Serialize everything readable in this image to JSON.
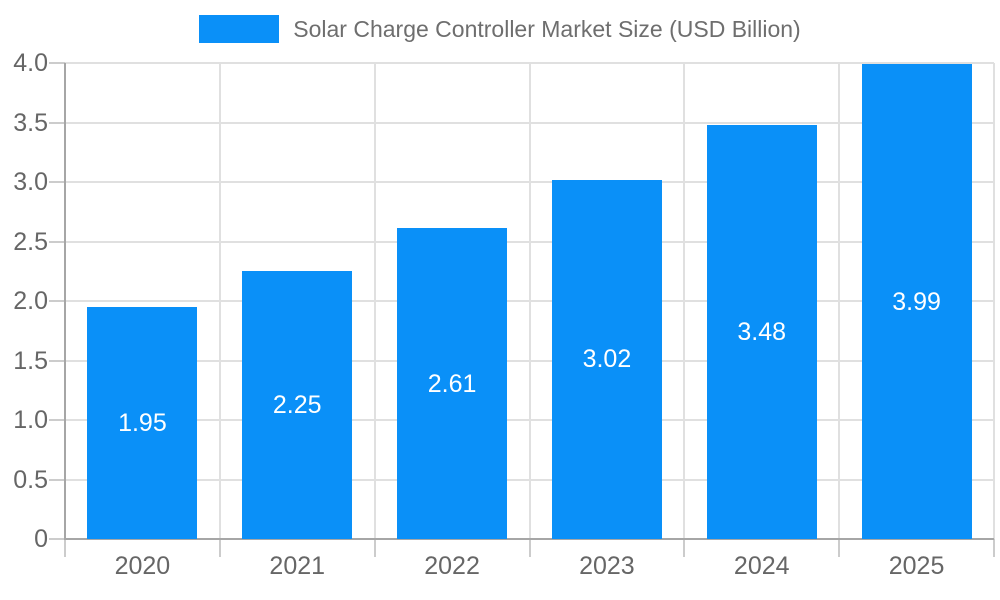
{
  "chart_data": {
    "type": "bar",
    "title": "Solar Charge Controller Market Size (USD Billion)",
    "categories": [
      "2020",
      "2021",
      "2022",
      "2023",
      "2024",
      "2025"
    ],
    "values": [
      1.95,
      2.25,
      2.61,
      3.02,
      3.48,
      3.99
    ],
    "value_labels": [
      "1.95",
      "2.25",
      "2.61",
      "3.02",
      "3.48",
      "3.99"
    ],
    "xlabel": "",
    "ylabel": "",
    "ylim": [
      0,
      4
    ],
    "yticks": [
      {
        "value": 0,
        "label": "0"
      },
      {
        "value": 0.5,
        "label": "0.5"
      },
      {
        "value": 1.0,
        "label": "1.0"
      },
      {
        "value": 1.5,
        "label": "1.5"
      },
      {
        "value": 2.0,
        "label": "2.0"
      },
      {
        "value": 2.5,
        "label": "2.5"
      },
      {
        "value": 3.0,
        "label": "3.0"
      },
      {
        "value": 3.5,
        "label": "3.5"
      },
      {
        "value": 4.0,
        "label": "4.0"
      }
    ],
    "grid": true,
    "legend_position": "top",
    "colors": {
      "bar": "#0A90F8",
      "bar_label": "#FFFFFF",
      "axis_line": "#A6A6A6",
      "gridline": "#E0E0E0",
      "tick": "#CCCCCC",
      "tick_label": "#666666",
      "title": "#6E6E6E",
      "background": "#FFFFFF"
    }
  }
}
